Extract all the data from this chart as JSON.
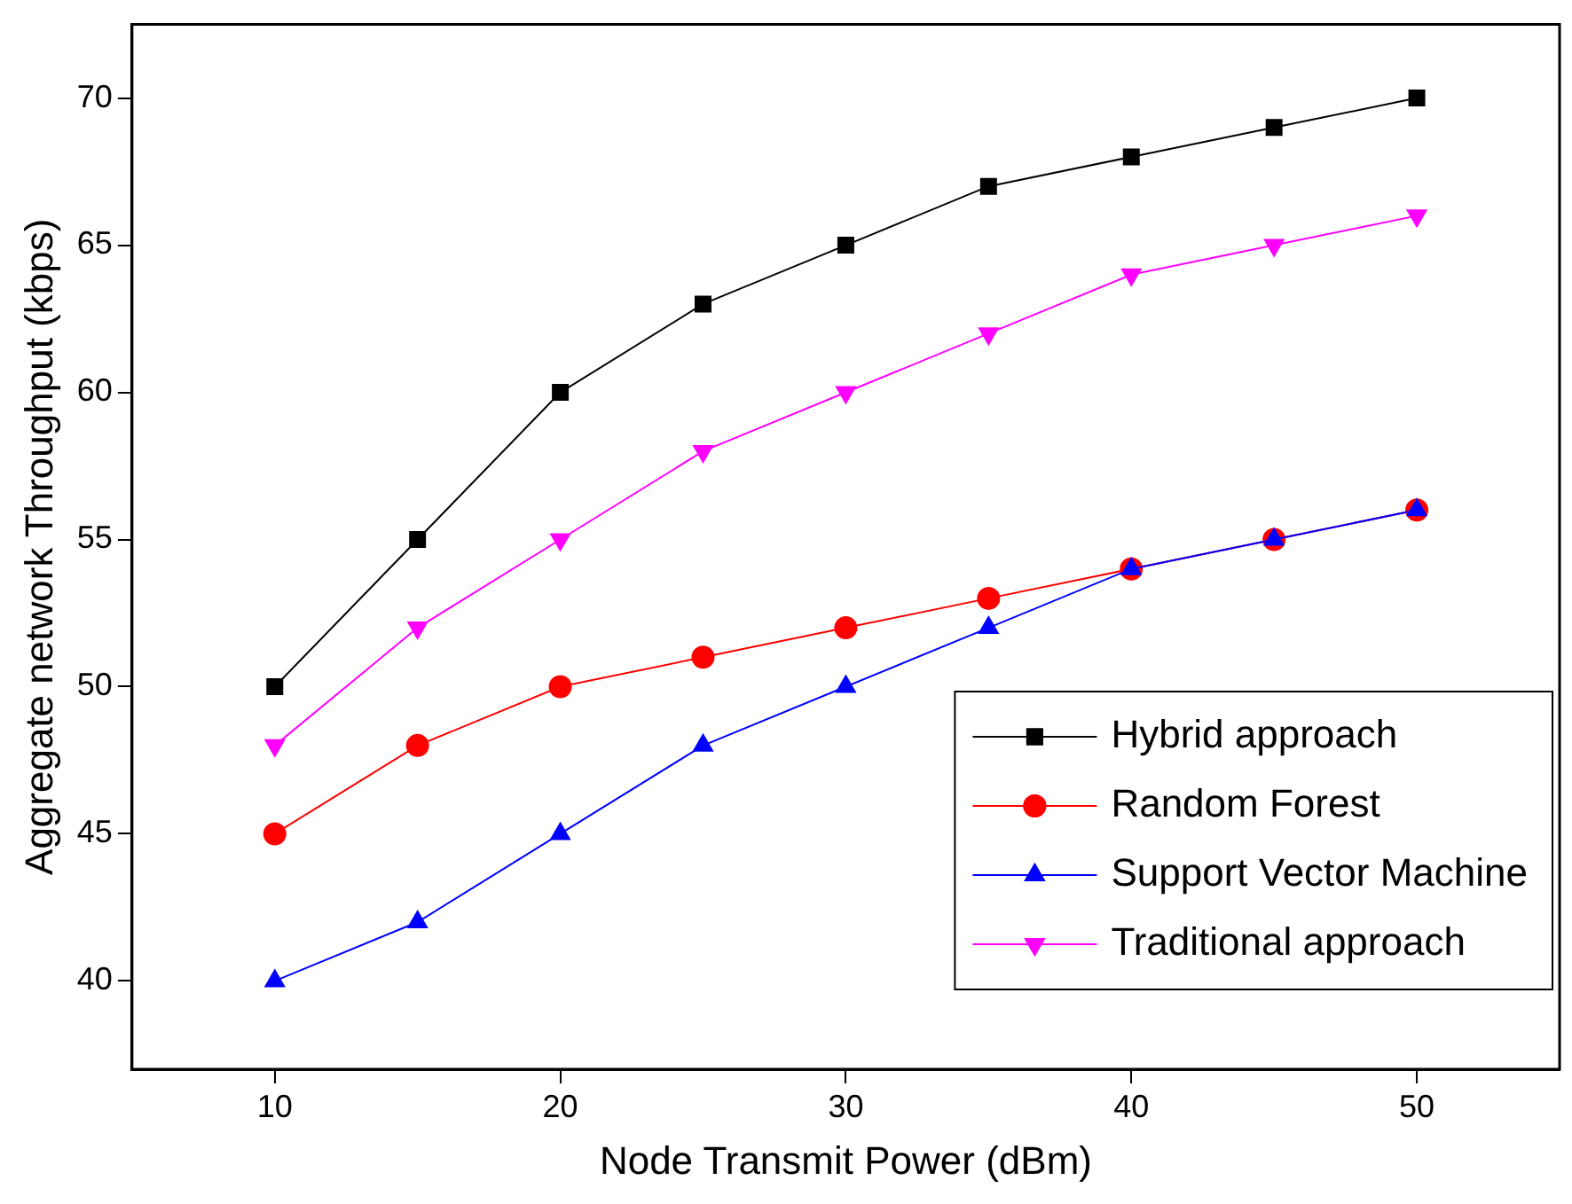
{
  "chart_data": {
    "type": "line",
    "xlabel": "Node Transmit Power (dBm)",
    "ylabel": "Aggregate network Throughput (kbps)",
    "x": [
      10,
      15,
      20,
      25,
      30,
      35,
      40,
      45,
      50
    ],
    "xlim": [
      5,
      55
    ],
    "xticks": [
      10,
      20,
      30,
      40,
      50
    ],
    "ylim": [
      37,
      72.5
    ],
    "yticks": [
      40,
      45,
      50,
      55,
      60,
      65,
      70
    ],
    "grid": false,
    "legend": "bottom right",
    "line_style": "solid",
    "series": [
      {
        "name": "Hybrid approach",
        "color": "#000000",
        "marker": "square",
        "values": [
          50,
          55,
          60,
          63,
          65,
          67,
          68,
          69,
          70
        ]
      },
      {
        "name": "Random Forest",
        "color": "#ff0000",
        "marker": "circle",
        "values": [
          45,
          48,
          50,
          51,
          52,
          53,
          54,
          55,
          56
        ]
      },
      {
        "name": "Support Vector Machine",
        "color": "#0000ff",
        "marker": "triangle",
        "values": [
          40,
          42,
          45,
          48,
          50,
          52,
          54,
          55,
          56
        ]
      },
      {
        "name": "Traditional approach",
        "color": "#ff00ff",
        "marker": "triangle-down",
        "values": [
          48,
          52,
          55,
          58,
          60,
          62,
          64,
          65,
          66
        ]
      }
    ]
  }
}
